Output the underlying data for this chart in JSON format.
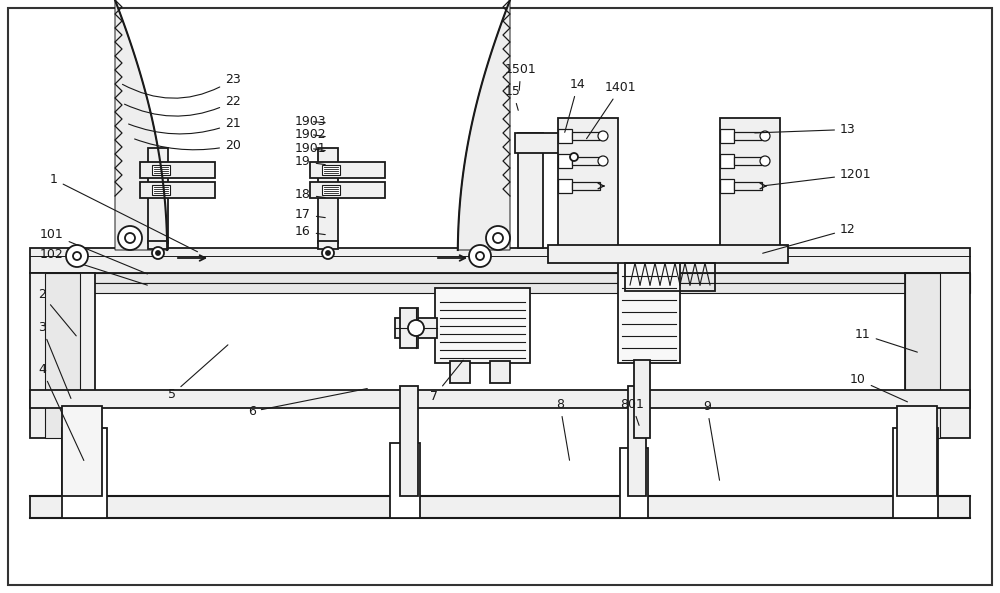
{
  "bg_color": "#ffffff",
  "lc": "#1a1a1a",
  "lw": 1.3,
  "fig_w": 10.0,
  "fig_h": 5.93
}
